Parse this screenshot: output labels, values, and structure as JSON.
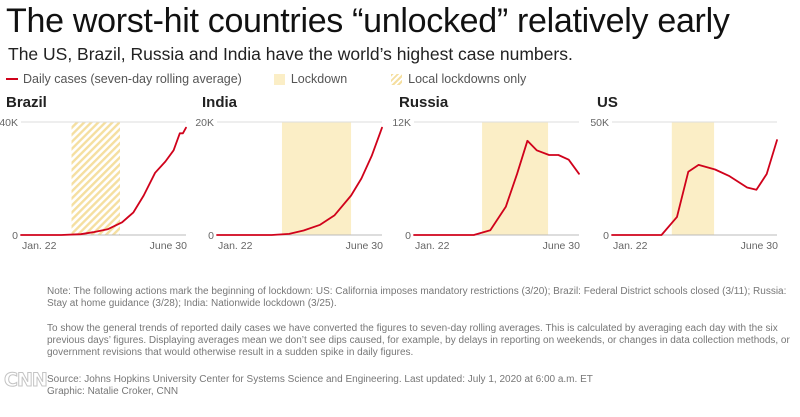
{
  "title": "The worst-hit countries “unlocked” relatively early",
  "subtitle": "The US, Brazil, Russia and India have the world’s highest case numbers.",
  "legend": {
    "daily_cases": "Daily cases (seven-day rolling average)",
    "lockdown": "Lockdown",
    "local_lockdowns": "Local lockdowns only"
  },
  "colors": {
    "line": "#d0021b",
    "lockdown": "#fbeec6",
    "local_lockdown_hatch": "#f5dfa0",
    "axis": "#bbbbbb"
  },
  "chart_data": [
    {
      "type": "line",
      "title": "Brazil",
      "x_tick_labels": [
        "Jan. 22",
        "June 30"
      ],
      "y_tick_labels": [
        "40K",
        "0"
      ],
      "ylim": [
        0,
        40000
      ],
      "x_range": [
        "2020-01-22",
        "2020-06-30"
      ],
      "shading": {
        "kind": "local_lockdown",
        "start": "2020-03-11",
        "end": "2020-04-27"
      },
      "series": [
        {
          "x": [
            "2020-01-22",
            "2020-03-01",
            "2020-03-20",
            "2020-04-01",
            "2020-04-15",
            "2020-04-29",
            "2020-05-10",
            "2020-05-20",
            "2020-05-31",
            "2020-06-10",
            "2020-06-18",
            "2020-06-24",
            "2020-06-27",
            "2020-06-30"
          ],
          "values": [
            0,
            0,
            300,
            1000,
            2000,
            4500,
            8000,
            14000,
            22000,
            26000,
            30000,
            36000,
            36000,
            38000
          ]
        }
      ]
    },
    {
      "type": "line",
      "title": "India",
      "x_tick_labels": [
        "Jan. 22",
        "June 30"
      ],
      "y_tick_labels": [
        "20K",
        "0"
      ],
      "ylim": [
        0,
        20000
      ],
      "x_range": [
        "2020-01-22",
        "2020-06-30"
      ],
      "shading": {
        "kind": "lockdown",
        "start": "2020-03-25",
        "end": "2020-05-31"
      },
      "series": [
        {
          "x": [
            "2020-01-22",
            "2020-03-15",
            "2020-04-01",
            "2020-04-15",
            "2020-05-01",
            "2020-05-15",
            "2020-05-31",
            "2020-06-10",
            "2020-06-20",
            "2020-06-30"
          ],
          "values": [
            0,
            0,
            200,
            800,
            1800,
            3500,
            7000,
            10000,
            14000,
            19000
          ]
        }
      ]
    },
    {
      "type": "line",
      "title": "Russia",
      "x_tick_labels": [
        "Jan. 22",
        "June 30"
      ],
      "y_tick_labels": [
        "12K",
        "0"
      ],
      "ylim": [
        0,
        12000
      ],
      "x_range": [
        "2020-01-22",
        "2020-06-30"
      ],
      "shading": {
        "kind": "lockdown",
        "start": "2020-03-28",
        "end": "2020-05-31"
      },
      "series": [
        {
          "x": [
            "2020-01-22",
            "2020-03-20",
            "2020-04-05",
            "2020-04-20",
            "2020-05-01",
            "2020-05-11",
            "2020-05-20",
            "2020-06-01",
            "2020-06-10",
            "2020-06-20",
            "2020-06-30"
          ],
          "values": [
            0,
            0,
            500,
            3000,
            6500,
            10000,
            9000,
            8500,
            8500,
            8000,
            6500
          ]
        }
      ]
    },
    {
      "type": "line",
      "title": "US",
      "x_tick_labels": [
        "Jan. 22",
        "June 30"
      ],
      "y_tick_labels": [
        "50K",
        "0"
      ],
      "ylim": [
        0,
        50000
      ],
      "x_range": [
        "2020-01-22",
        "2020-06-30"
      ],
      "shading": {
        "kind": "lockdown",
        "start": "2020-03-20",
        "end": "2020-04-30"
      },
      "series": [
        {
          "x": [
            "2020-01-22",
            "2020-03-10",
            "2020-03-25",
            "2020-04-05",
            "2020-04-15",
            "2020-05-01",
            "2020-05-15",
            "2020-06-01",
            "2020-06-10",
            "2020-06-20",
            "2020-06-30"
          ],
          "values": [
            0,
            0,
            8000,
            28000,
            31000,
            29000,
            26000,
            21000,
            20000,
            27000,
            42000
          ]
        }
      ]
    }
  ],
  "notes": [
    "Note: The following actions mark the beginning of lockdown: US: California imposes mandatory restrictions (3/20); Brazil: Federal District schools closed (3/11); Russia: Stay at home guidance (3/28); India: Nationwide lockdown (3/25).",
    "To show the general trends of reported daily cases we have converted the figures to seven-day rolling averages. This is calculated by averaging each day with the six previous days’ figures. Displaying averages mean we don’t see dips caused, for example, by delays in reporting on weekends, or changes in data collection methods, or government revisions that would otherwise result in a sudden spike in daily figures."
  ],
  "source": {
    "line1": "Source: Johns Hopkins University Center for Systems Science and Engineering. Last updated: July 1, 2020 at 6:00 a.m. ET",
    "line2": "Graphic: Natalie Croker, CNN"
  },
  "logo": "CNN"
}
